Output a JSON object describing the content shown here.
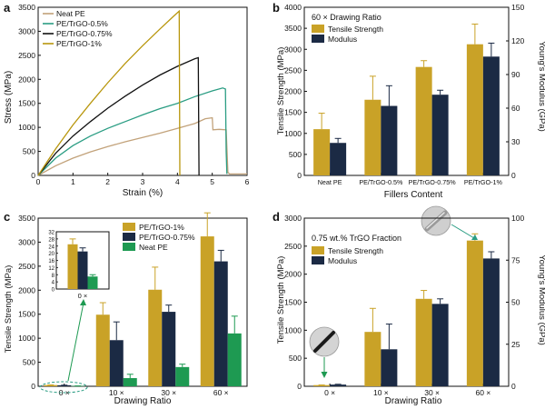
{
  "colors": {
    "gold": "#C9A227",
    "navy": "#1B2A44",
    "green": "#1E9A52",
    "green_light": "#2BAE6B",
    "tan": "#C2A27A",
    "teal": "#2A9D83",
    "black": "#111111",
    "olive": "#B8960C",
    "axis": "#111111"
  },
  "chart_data": [
    {
      "panel": "a",
      "type": "line",
      "xlabel": "Strain (%)",
      "ylabel": "Stress (MPa)",
      "xlim": [
        0,
        6
      ],
      "ylim": [
        0,
        3500
      ],
      "xticks": [
        "0",
        "1",
        "2",
        "3",
        "4",
        "5",
        "6"
      ],
      "yticks": [
        "0",
        "500",
        "1000",
        "1500",
        "2000",
        "2500",
        "3000",
        "3500"
      ],
      "legend": "top-left",
      "series": [
        {
          "name": "Neat PE",
          "color_key": "tan",
          "x": [
            0,
            0.5,
            1,
            1.5,
            2,
            2.5,
            3,
            3.5,
            4,
            4.5,
            4.8,
            5.0,
            5.02,
            5.2,
            5.4,
            5.45,
            5.5,
            6.0
          ],
          "y": [
            0,
            200,
            360,
            490,
            600,
            700,
            790,
            880,
            980,
            1080,
            1180,
            1200,
            950,
            960,
            950,
            60,
            30,
            30
          ]
        },
        {
          "name": "PE/TrGO-0.5%",
          "color_key": "teal",
          "x": [
            0,
            0.5,
            1,
            1.5,
            2,
            2.5,
            3,
            3.5,
            4,
            4.5,
            5.0,
            5.3,
            5.38,
            5.4,
            5.42
          ],
          "y": [
            0,
            360,
            620,
            820,
            980,
            1120,
            1260,
            1390,
            1500,
            1640,
            1760,
            1820,
            1800,
            500,
            30
          ]
        },
        {
          "name": "PE/TrGO-0.75%",
          "color_key": "black",
          "x": [
            0,
            0.5,
            1,
            1.5,
            2,
            2.5,
            3,
            3.5,
            4,
            4.5,
            4.6,
            4.62
          ],
          "y": [
            0,
            460,
            820,
            1120,
            1400,
            1650,
            1880,
            2090,
            2270,
            2430,
            2450,
            0
          ]
        },
        {
          "name": "PE/TrGO-1%",
          "color_key": "olive",
          "x": [
            0,
            0.5,
            1,
            1.5,
            2,
            2.5,
            3,
            3.5,
            3.9,
            4.05,
            4.07
          ],
          "y": [
            0,
            550,
            1050,
            1500,
            1930,
            2330,
            2700,
            3050,
            3320,
            3420,
            0
          ]
        }
      ]
    },
    {
      "panel": "b",
      "type": "bar",
      "annotation": "60 × Drawing Ratio",
      "xlabel": "Fillers Content",
      "ylabel": "Tensile Strength (MPa)",
      "ylabel_right": "Young's Modulus (GPa)",
      "ylim": [
        0,
        4000
      ],
      "ylim_right": [
        0,
        150
      ],
      "yticks": [
        "0",
        "500",
        "1000",
        "1500",
        "2000",
        "2500",
        "3000",
        "3500",
        "4000"
      ],
      "yticks_right": [
        "0",
        "30",
        "60",
        "90",
        "120",
        "150"
      ],
      "categories": [
        "Neat PE",
        "PE/TrGO-0.5%",
        "PE/TrGO-0.75%",
        "PE/TrGO-1%"
      ],
      "legend": "top-left",
      "series": [
        {
          "name": "Tensile Strength",
          "color_key": "gold",
          "axis": "left",
          "values": [
            1100,
            1800,
            2580,
            3120
          ],
          "errors": [
            380,
            560,
            150,
            480
          ]
        },
        {
          "name": "Modulus",
          "color_key": "navy",
          "axis": "right",
          "values": [
            29,
            62,
            72,
            106
          ],
          "errors": [
            4,
            18,
            4,
            12
          ]
        }
      ]
    },
    {
      "panel": "c",
      "type": "bar",
      "xlabel": "Drawing Ratio",
      "ylabel": "Tensile Strength (MPa)",
      "ylim": [
        0,
        3500
      ],
      "yticks": [
        "0",
        "500",
        "1000",
        "1500",
        "2000",
        "2500",
        "3000",
        "3500"
      ],
      "categories": [
        "0 ×",
        "10 ×",
        "30 ×",
        "60 ×"
      ],
      "legend": "top-right",
      "series": [
        {
          "name": "PE/TrGO-1%",
          "color_key": "gold",
          "values": [
            25,
            1490,
            2010,
            3120
          ],
          "errors": [
            3,
            250,
            470,
            490
          ]
        },
        {
          "name": "PE/TrGO-0.75%",
          "color_key": "navy",
          "values": [
            21,
            960,
            1550,
            2600
          ],
          "errors": [
            2,
            380,
            140,
            230
          ]
        },
        {
          "name": "Neat PE",
          "color_key": "green",
          "values": [
            7,
            170,
            400,
            1100
          ],
          "errors": [
            1,
            80,
            60,
            360
          ]
        }
      ],
      "inset": {
        "category": "0 ×",
        "ylim": [
          0,
          32
        ],
        "yticks": [
          "0",
          "4",
          "8",
          "12",
          "16",
          "20",
          "24",
          "28",
          "32"
        ],
        "values": [
          25,
          21,
          7
        ],
        "errors": [
          3,
          2,
          1
        ]
      }
    },
    {
      "panel": "d",
      "type": "bar",
      "annotation": "0.75 wt.% TrGO Fraction",
      "xlabel": "Drawing Ratio",
      "ylabel": "Tensile Strength (MPa)",
      "ylabel_right": "Young's Modulus (GPa)",
      "ylim": [
        0,
        3000
      ],
      "ylim_right": [
        0,
        100
      ],
      "yticks": [
        "0",
        "500",
        "1000",
        "1500",
        "2000",
        "2500",
        "3000"
      ],
      "yticks_right": [
        "0",
        "25",
        "50",
        "75",
        "100"
      ],
      "categories": [
        "0 ×",
        "10 ×",
        "30 ×",
        "60 ×"
      ],
      "legend": "top-left",
      "series": [
        {
          "name": "Tensile Strength",
          "color_key": "gold",
          "axis": "left",
          "values": [
            21,
            970,
            1560,
            2600
          ],
          "errors": [
            2,
            420,
            150,
            120
          ]
        },
        {
          "name": "Modulus",
          "color_key": "navy",
          "axis": "right",
          "values": [
            1,
            22,
            49,
            76
          ],
          "errors": [
            0.2,
            15,
            3,
            4
          ]
        }
      ]
    }
  ],
  "panels": {
    "a": {
      "label": "a",
      "xlabel": "Strain (%)",
      "ylabel": "Stress (MPa)"
    },
    "b": {
      "label": "b",
      "xlabel": "Fillers Content",
      "ylabel": "Tensile Strength (MPa)",
      "ylabel_right": "Young's Modulus (GPa)",
      "annotation": "60 × Drawing Ratio"
    },
    "c": {
      "label": "c",
      "xlabel": "Drawing Ratio",
      "ylabel": "Tensile Strength (MPa)",
      "inset_xlabel": "0 ×"
    },
    "d": {
      "label": "d",
      "xlabel": "Drawing Ratio",
      "ylabel": "Tensile Strength (MPa)",
      "ylabel_right": "Young's Modulus (GPa)",
      "annotation": "0.75 wt.% TrGO Fraction"
    }
  }
}
